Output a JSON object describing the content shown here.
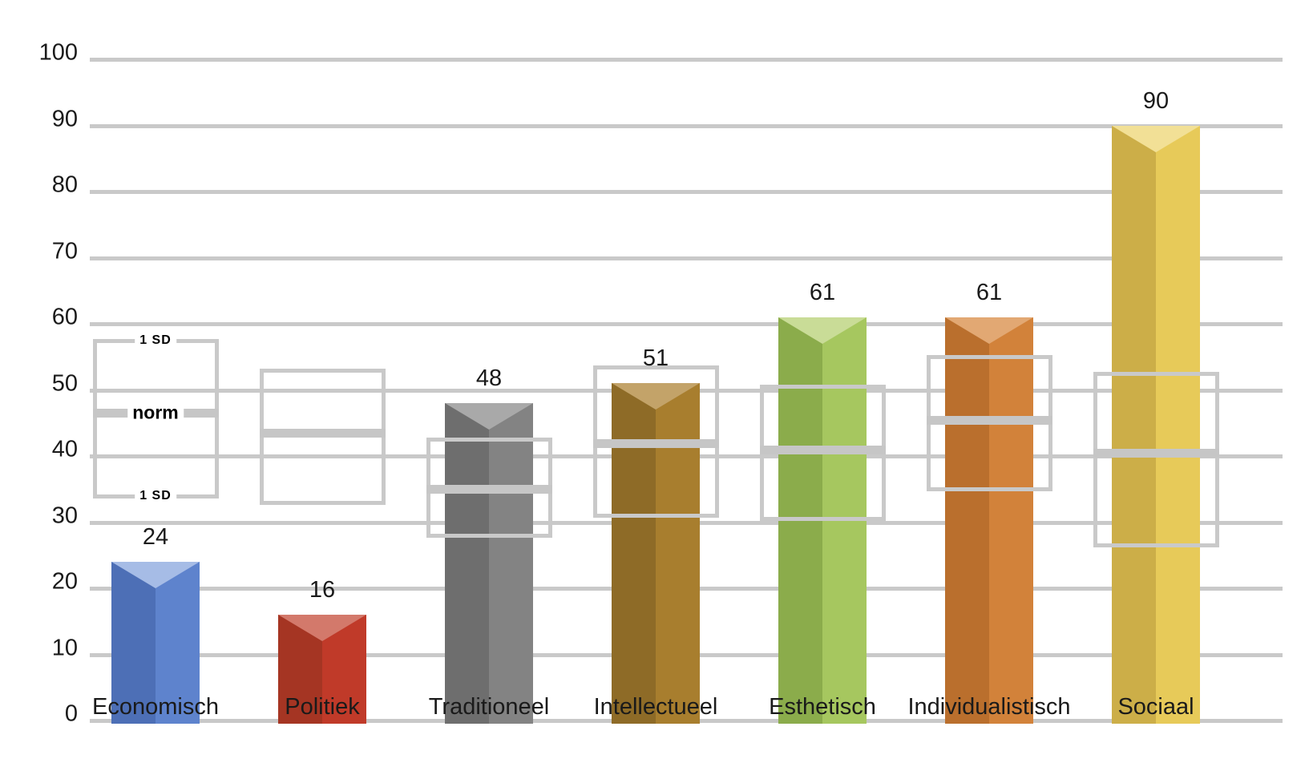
{
  "chart_data": {
    "type": "bar",
    "title": "",
    "categories": [
      "Economisch",
      "Politiek",
      "Traditioneel",
      "Intellectueel",
      "Esthetisch",
      "Individualistisch",
      "Sociaal"
    ],
    "values": [
      24,
      16,
      48,
      51,
      61,
      61,
      90
    ],
    "value_labels": [
      "24",
      "16",
      "48",
      "51",
      "61",
      "61",
      "90"
    ],
    "bar_colors": [
      {
        "left": "#4d6fb6",
        "right": "#5e83cd",
        "top": "#a6bce6"
      },
      {
        "left": "#a53523",
        "right": "#c03a29",
        "top": "#d3796b"
      },
      {
        "left": "#6e6e6e",
        "right": "#838383",
        "top": "#a9a9a9"
      },
      {
        "left": "#8e6b27",
        "right": "#a87e2e",
        "top": "#c3a369"
      },
      {
        "left": "#8bac4b",
        "right": "#a6c75f",
        "top": "#c9dc97"
      },
      {
        "left": "#ba6f2d",
        "right": "#d2823a",
        "top": "#e2a873"
      },
      {
        "left": "#ccae48",
        "right": "#e7ca59",
        "top": "#f2e096"
      }
    ],
    "norm_boxes": [
      {
        "low": 34,
        "high": 57.5,
        "norm": 46.5
      },
      {
        "low": 33,
        "high": 53,
        "norm": 43.5
      },
      {
        "low": 28,
        "high": 42.5,
        "norm": 35
      },
      {
        "low": 31,
        "high": 53.5,
        "norm": 42
      },
      {
        "low": 30.5,
        "high": 50.5,
        "norm": 41
      },
      {
        "low": 35,
        "high": 55,
        "norm": 45.5
      },
      {
        "low": 26.5,
        "high": 52.5,
        "norm": 40.5
      }
    ],
    "annotations": {
      "sd_top": "1 SD",
      "norm": "norm",
      "sd_bottom": "1 SD"
    },
    "y_axis": {
      "min": 0,
      "max": 100,
      "step": 10,
      "tick_labels": [
        "0",
        "10",
        "20",
        "30",
        "40",
        "50",
        "60",
        "70",
        "80",
        "90",
        "100"
      ]
    },
    "xlabel": "",
    "ylabel": "",
    "grid": true,
    "legend": "none",
    "grid_color": "#c9c9c9",
    "norm_box_border_color": "#c9c9c9",
    "norm_line_color": "#c6c6c6",
    "background": "#ffffff",
    "text_color": "#1a1a1a"
  }
}
